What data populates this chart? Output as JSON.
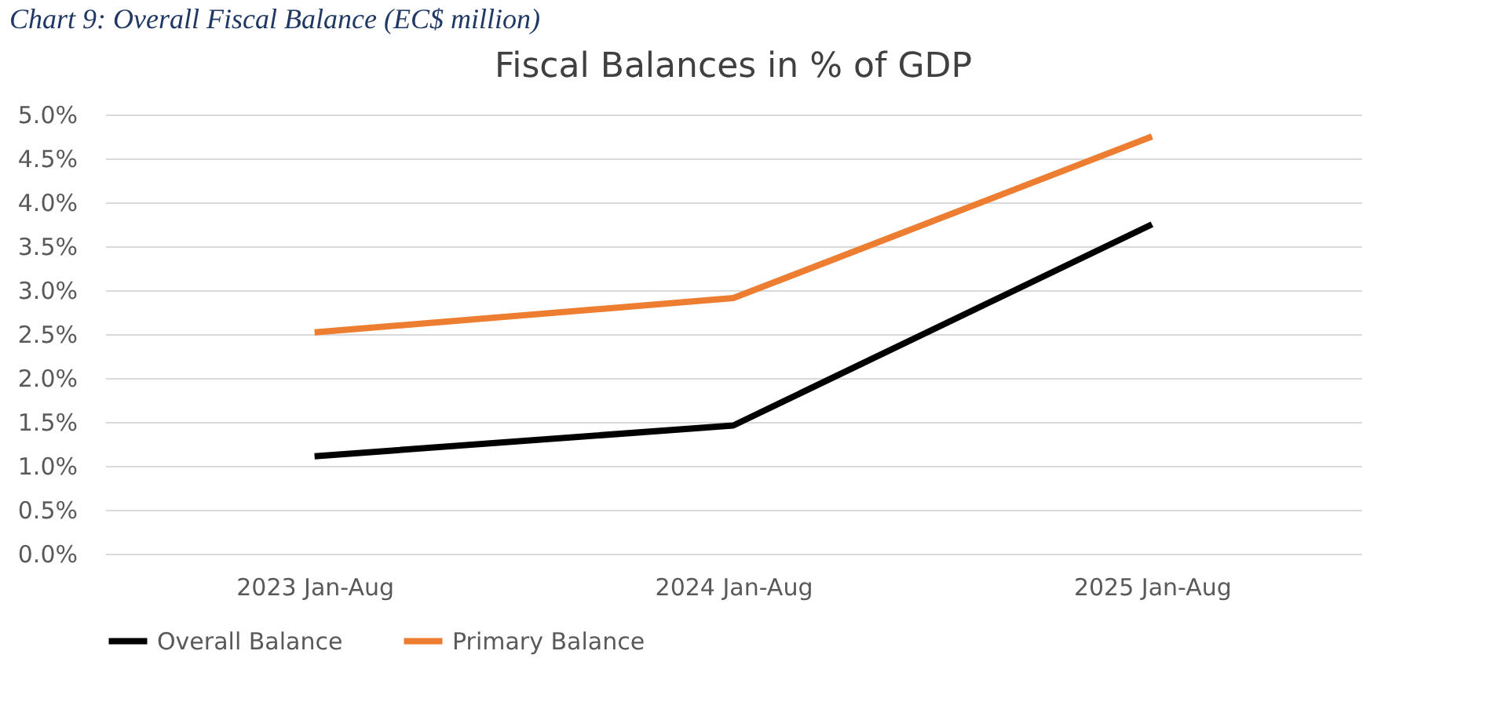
{
  "chart_data": {
    "type": "line",
    "title": "Fiscal Balances in %  of GDP",
    "annotations": [
      "Chart 9: Overall Fiscal Balance (EC$ million)"
    ],
    "categories": [
      "2023 Jan-Aug",
      "2024 Jan-Aug",
      "2025 Jan-Aug"
    ],
    "series": [
      {
        "name": "Overall Balance",
        "color": "#000000",
        "values": [
          1.11,
          1.46,
          3.75
        ]
      },
      {
        "name": "Primary Balance",
        "color": "#ed7d31",
        "values": [
          2.52,
          2.91,
          4.75
        ]
      }
    ],
    "ylim": [
      0,
      5
    ],
    "yticks": [
      {
        "value": 0,
        "label": "0.0%"
      },
      {
        "value": 0.5,
        "label": "0.5%"
      },
      {
        "value": 1,
        "label": "1.0%"
      },
      {
        "value": 1.5,
        "label": "1.5%"
      },
      {
        "value": 2,
        "label": "2.0%"
      },
      {
        "value": 2.5,
        "label": "2.5%"
      },
      {
        "value": 3,
        "label": "3.0%"
      },
      {
        "value": 3.5,
        "label": "3.5%"
      },
      {
        "value": 4,
        "label": "4.0%"
      },
      {
        "value": 4.5,
        "label": "4.5%"
      },
      {
        "value": 5,
        "label": "5.0%"
      }
    ],
    "grid": "y",
    "legend": "bottom",
    "marker": "none",
    "line_style": "solid"
  }
}
